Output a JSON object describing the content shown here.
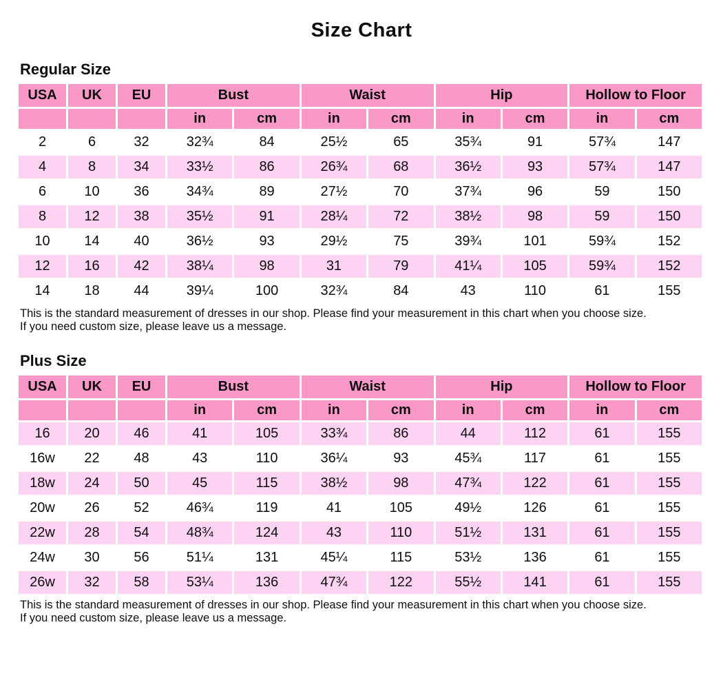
{
  "title": "Size Chart",
  "colors": {
    "header_pink": "#fa99c8",
    "row_pink": "#fcd3f3",
    "page_bg": "#ffffff",
    "text": "#0d0d0d"
  },
  "notes": {
    "line1": "This is the standard measurement of dresses in our shop. Please find your measurement in this chart when you choose size.",
    "line2": "If you need custom size, please leave us a message."
  },
  "chart_data": [
    {
      "type": "table",
      "title": "Regular Size",
      "columns_row1": [
        "USA",
        "UK",
        "EU",
        "Bust",
        "Waist",
        "Hip",
        "Hollow to Floor"
      ],
      "columns_row2": [
        "in",
        "cm",
        "in",
        "cm",
        "in",
        "cm",
        "in",
        "cm"
      ],
      "rows": [
        [
          "2",
          "6",
          "32",
          "32¾",
          "84",
          "25½",
          "65",
          "35¾",
          "91",
          "57¾",
          "147"
        ],
        [
          "4",
          "8",
          "34",
          "33½",
          "86",
          "26¾",
          "68",
          "36½",
          "93",
          "57¾",
          "147"
        ],
        [
          "6",
          "10",
          "36",
          "34¾",
          "89",
          "27½",
          "70",
          "37¾",
          "96",
          "59",
          "150"
        ],
        [
          "8",
          "12",
          "38",
          "35½",
          "91",
          "28¼",
          "72",
          "38½",
          "98",
          "59",
          "150"
        ],
        [
          "10",
          "14",
          "40",
          "36½",
          "93",
          "29½",
          "75",
          "39¾",
          "101",
          "59¾",
          "152"
        ],
        [
          "12",
          "16",
          "42",
          "38¼",
          "98",
          "31",
          "79",
          "41¼",
          "105",
          "59¾",
          "152"
        ],
        [
          "14",
          "18",
          "44",
          "39¼",
          "100",
          "32¾",
          "84",
          "43",
          "110",
          "61",
          "155"
        ]
      ]
    },
    {
      "type": "table",
      "title": "Plus Size",
      "columns_row1": [
        "USA",
        "UK",
        "EU",
        "Bust",
        "Waist",
        "Hip",
        "Hollow to Floor"
      ],
      "columns_row2": [
        "in",
        "cm",
        "in",
        "cm",
        "in",
        "cm",
        "in",
        "cm"
      ],
      "rows": [
        [
          "16",
          "20",
          "46",
          "41",
          "105",
          "33¾",
          "86",
          "44",
          "112",
          "61",
          "155"
        ],
        [
          "16w",
          "22",
          "48",
          "43",
          "110",
          "36¼",
          "93",
          "45¾",
          "117",
          "61",
          "155"
        ],
        [
          "18w",
          "24",
          "50",
          "45",
          "115",
          "38½",
          "98",
          "47¾",
          "122",
          "61",
          "155"
        ],
        [
          "20w",
          "26",
          "52",
          "46¾",
          "119",
          "41",
          "105",
          "49½",
          "126",
          "61",
          "155"
        ],
        [
          "22w",
          "28",
          "54",
          "48¾",
          "124",
          "43",
          "110",
          "51½",
          "131",
          "61",
          "155"
        ],
        [
          "24w",
          "30",
          "56",
          "51¼",
          "131",
          "45¼",
          "115",
          "53½",
          "136",
          "61",
          "155"
        ],
        [
          "26w",
          "32",
          "58",
          "53¼",
          "136",
          "47¾",
          "122",
          "55½",
          "141",
          "61",
          "155"
        ]
      ]
    }
  ]
}
